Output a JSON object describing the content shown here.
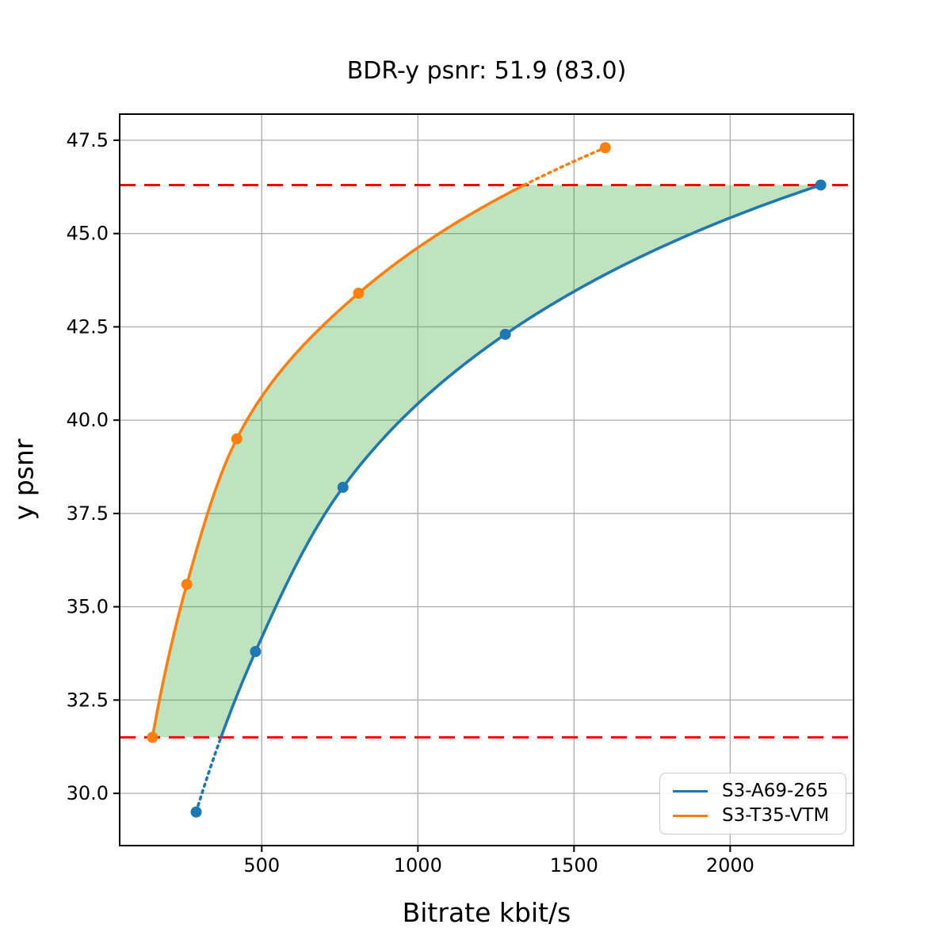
{
  "figure": {
    "title": "BDR-y psnr: 51.9 (83.0)",
    "xlabel": "Bitrate kbit/s",
    "ylabel": "y psnr"
  },
  "chart_data": {
    "type": "line",
    "title": "BDR-y psnr: 51.9 (83.0)",
    "xlabel": "Bitrate kbit/s",
    "ylabel": "y psnr",
    "xlim": [
      45,
      2395
    ],
    "ylim": [
      28.6,
      48.2
    ],
    "xticks": [
      500,
      1000,
      1500,
      2000
    ],
    "xtick_labels": [
      "500",
      "1000",
      "1500",
      "2000"
    ],
    "yticks": [
      30.0,
      32.5,
      35.0,
      37.5,
      40.0,
      42.5,
      45.0,
      47.5
    ],
    "ytick_labels": [
      "30.0",
      "32.5",
      "35.0",
      "37.5",
      "40.0",
      "42.5",
      "45.0",
      "47.5"
    ],
    "grid": true,
    "grid_color": "#b0b0b0",
    "legend_position": "lower right",
    "interpolation": "pchip-on-log-bitrate",
    "series": [
      {
        "name": "S3-A69-265",
        "color": "#1f77b4",
        "marker": "circle",
        "x": [
          290,
          480,
          760,
          1280,
          2290
        ],
        "y": [
          29.5,
          33.8,
          38.2,
          42.3,
          46.3
        ]
      },
      {
        "name": "S3-T35-VTM",
        "color": "#ff7f0e",
        "marker": "circle",
        "x": [
          150,
          260,
          420,
          810,
          1600
        ],
        "y": [
          31.5,
          35.6,
          39.5,
          43.4,
          47.3
        ]
      }
    ],
    "hlines": [
      {
        "y": 46.3,
        "color": "#ff0000",
        "style": "dashed"
      },
      {
        "y": 31.5,
        "color": "#ff0000",
        "style": "dashed"
      }
    ],
    "overlap_band": {
      "between": [
        "S3-T35-VTM",
        "S3-A69-265"
      ],
      "psnr_range": [
        31.5,
        46.3
      ],
      "fill_color": "#2ca02c",
      "opacity": 0.3,
      "outside_range_line_style": "dotted"
    }
  }
}
